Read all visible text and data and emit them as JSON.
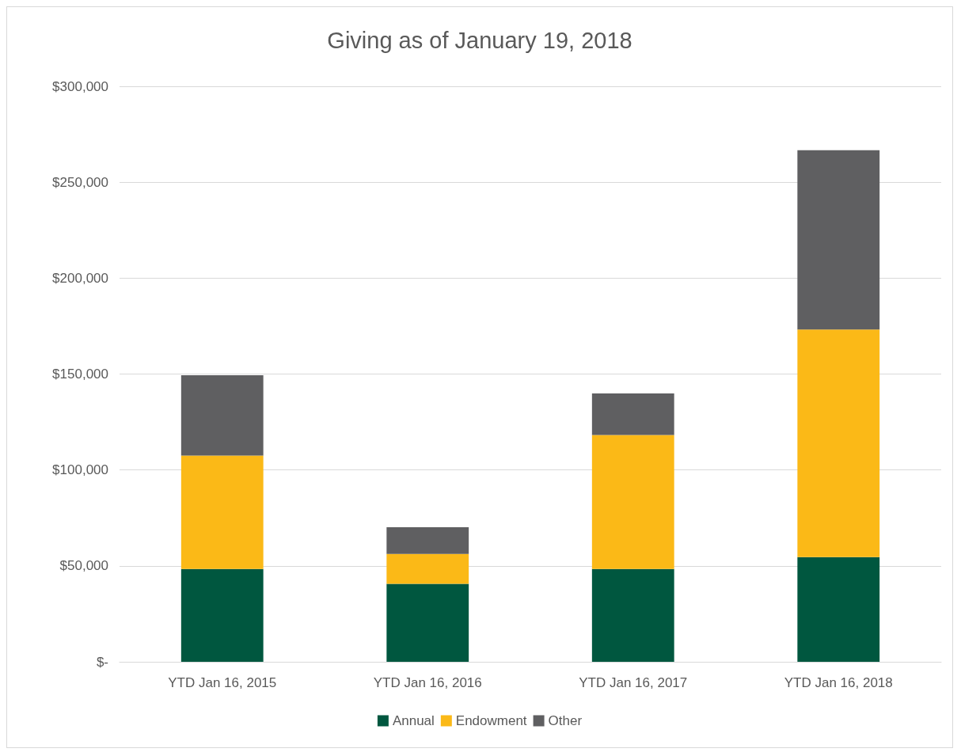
{
  "chart_data": {
    "type": "bar",
    "title": "Giving as of January 19, 2018",
    "stacked": true,
    "categories": [
      "YTD Jan 16, 2015",
      "YTD Jan 16, 2016",
      "YTD Jan 16, 2017",
      "YTD Jan 16, 2018"
    ],
    "series": [
      {
        "name": "Annual",
        "color": "#00573f",
        "values": [
          48400,
          40600,
          48400,
          54600
        ]
      },
      {
        "name": "Endowment",
        "color": "#fbb917",
        "values": [
          59100,
          15600,
          69800,
          118600
        ]
      },
      {
        "name": "Other",
        "color": "#5f5f61",
        "values": [
          41900,
          14000,
          21700,
          93500
        ]
      }
    ],
    "ylim": [
      0,
      300000
    ],
    "yticks": [
      {
        "value": 0,
        "label": "$-"
      },
      {
        "value": 50000,
        "label": "$50,000"
      },
      {
        "value": 100000,
        "label": "$100,000"
      },
      {
        "value": 150000,
        "label": "$150,000"
      },
      {
        "value": 200000,
        "label": "$200,000"
      },
      {
        "value": 250000,
        "label": "$250,000"
      },
      {
        "value": 300000,
        "label": "$300,000"
      }
    ],
    "grid": "y",
    "legend": "bottom"
  }
}
